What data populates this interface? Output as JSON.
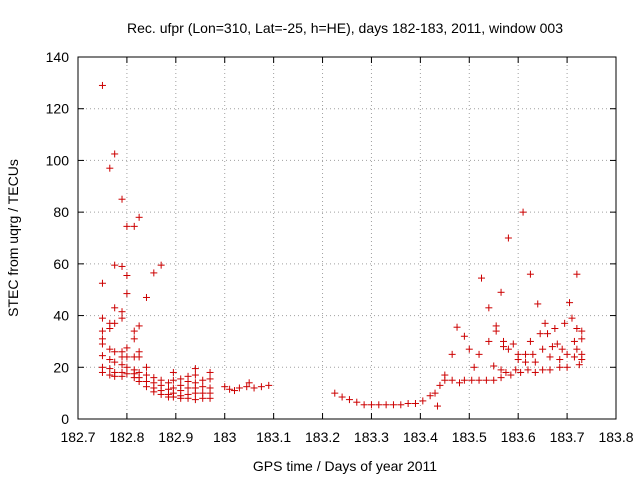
{
  "chart_data": {
    "type": "scatter",
    "title": "Rec. ufpr (Lon=310, Lat=-25, h=HE), days 182-183, 2011, window 003",
    "xlabel": "GPS time / Days of year 2011",
    "ylabel": "STEC from uqrg / TECUs",
    "xlim": [
      182.7,
      183.8
    ],
    "ylim": [
      0,
      140
    ],
    "xticks": [
      "182.7",
      "182.8",
      "182.9",
      "183",
      "183.1",
      "183.2",
      "183.3",
      "183.4",
      "183.5",
      "183.6",
      "183.7",
      "183.8"
    ],
    "yticks": [
      "0",
      "20",
      "40",
      "60",
      "80",
      "100",
      "120",
      "140"
    ],
    "grid": true,
    "marker": "+",
    "marker_color": "#cc0000",
    "series": [
      {
        "points": [
          [
            182.75,
            129
          ],
          [
            182.75,
            52.5
          ],
          [
            182.75,
            39
          ],
          [
            182.75,
            34
          ],
          [
            182.75,
            31
          ],
          [
            182.75,
            29
          ],
          [
            182.75,
            24.5
          ],
          [
            182.75,
            20
          ],
          [
            182.75,
            18
          ],
          [
            182.765,
            97
          ],
          [
            182.765,
            37
          ],
          [
            182.765,
            35
          ],
          [
            182.765,
            27
          ],
          [
            182.765,
            23
          ],
          [
            182.765,
            19.5
          ],
          [
            182.765,
            17
          ],
          [
            182.775,
            102.5
          ],
          [
            182.775,
            59.5
          ],
          [
            182.775,
            43
          ],
          [
            182.775,
            37
          ],
          [
            182.775,
            26
          ],
          [
            182.775,
            22
          ],
          [
            182.775,
            18
          ],
          [
            182.775,
            16.5
          ],
          [
            182.79,
            85
          ],
          [
            182.79,
            59
          ],
          [
            182.79,
            41.5
          ],
          [
            182.79,
            39
          ],
          [
            182.79,
            26
          ],
          [
            182.79,
            24
          ],
          [
            182.79,
            21
          ],
          [
            182.79,
            18
          ],
          [
            182.79,
            16.5
          ],
          [
            182.8,
            74.5
          ],
          [
            182.8,
            55.5
          ],
          [
            182.8,
            48.5
          ],
          [
            182.8,
            27.5
          ],
          [
            182.8,
            24
          ],
          [
            182.8,
            20
          ],
          [
            182.8,
            17.5
          ],
          [
            182.815,
            74.5
          ],
          [
            182.815,
            34
          ],
          [
            182.815,
            31
          ],
          [
            182.815,
            24
          ],
          [
            182.815,
            19
          ],
          [
            182.815,
            17.5
          ],
          [
            182.815,
            16
          ],
          [
            182.825,
            78
          ],
          [
            182.825,
            36
          ],
          [
            182.825,
            26
          ],
          [
            182.825,
            24
          ],
          [
            182.825,
            18
          ],
          [
            182.825,
            16
          ],
          [
            182.825,
            14.5
          ],
          [
            182.84,
            47
          ],
          [
            182.84,
            20
          ],
          [
            182.84,
            17
          ],
          [
            182.84,
            14.5
          ],
          [
            182.84,
            12.5
          ],
          [
            182.855,
            56.5
          ],
          [
            182.855,
            16
          ],
          [
            182.855,
            14
          ],
          [
            182.855,
            12
          ],
          [
            182.855,
            10.5
          ],
          [
            182.87,
            59.5
          ],
          [
            182.87,
            15
          ],
          [
            182.87,
            13
          ],
          [
            182.87,
            11
          ],
          [
            182.87,
            9.5
          ],
          [
            182.885,
            14
          ],
          [
            182.885,
            11.5
          ],
          [
            182.885,
            9.5
          ],
          [
            182.885,
            8.5
          ],
          [
            182.895,
            18
          ],
          [
            182.895,
            15
          ],
          [
            182.895,
            12
          ],
          [
            182.895,
            10
          ],
          [
            182.895,
            8.5
          ],
          [
            182.91,
            15.5
          ],
          [
            182.91,
            13
          ],
          [
            182.91,
            11
          ],
          [
            182.91,
            9
          ],
          [
            182.91,
            8
          ],
          [
            182.925,
            16.5
          ],
          [
            182.925,
            14.5
          ],
          [
            182.925,
            12
          ],
          [
            182.925,
            9.5
          ],
          [
            182.925,
            8
          ],
          [
            182.94,
            19.5
          ],
          [
            182.94,
            17
          ],
          [
            182.94,
            14
          ],
          [
            182.94,
            12
          ],
          [
            182.94,
            10
          ],
          [
            182.94,
            7.5
          ],
          [
            182.955,
            15
          ],
          [
            182.955,
            12.5
          ],
          [
            182.955,
            10
          ],
          [
            182.955,
            8
          ],
          [
            182.97,
            18
          ],
          [
            182.97,
            15.5
          ],
          [
            182.97,
            12
          ],
          [
            182.97,
            10
          ],
          [
            182.97,
            8
          ],
          [
            183.0,
            12.5
          ],
          [
            183.01,
            11.5
          ],
          [
            183.02,
            11
          ],
          [
            183.03,
            12
          ],
          [
            183.045,
            12.5
          ],
          [
            183.05,
            14
          ],
          [
            183.06,
            12
          ],
          [
            183.075,
            12.5
          ],
          [
            183.09,
            13
          ],
          [
            183.225,
            10
          ],
          [
            183.24,
            8.5
          ],
          [
            183.255,
            7.5
          ],
          [
            183.27,
            6.5
          ],
          [
            183.285,
            5.5
          ],
          [
            183.3,
            5.5
          ],
          [
            183.315,
            5.5
          ],
          [
            183.33,
            5.5
          ],
          [
            183.345,
            5.5
          ],
          [
            183.36,
            5.5
          ],
          [
            183.375,
            6
          ],
          [
            183.39,
            6
          ],
          [
            183.405,
            7
          ],
          [
            183.42,
            9
          ],
          [
            183.43,
            10
          ],
          [
            183.435,
            5
          ],
          [
            183.44,
            13
          ],
          [
            183.45,
            17
          ],
          [
            183.45,
            15
          ],
          [
            183.465,
            25
          ],
          [
            183.465,
            15
          ],
          [
            183.475,
            35.5
          ],
          [
            183.48,
            14
          ],
          [
            183.49,
            15
          ],
          [
            183.49,
            32
          ],
          [
            183.5,
            27
          ],
          [
            183.505,
            15
          ],
          [
            183.51,
            20
          ],
          [
            183.52,
            25
          ],
          [
            183.52,
            15
          ],
          [
            183.525,
            54.5
          ],
          [
            183.535,
            15
          ],
          [
            183.54,
            43
          ],
          [
            183.54,
            30
          ],
          [
            183.55,
            20.5
          ],
          [
            183.55,
            15
          ],
          [
            183.555,
            36
          ],
          [
            183.555,
            34
          ],
          [
            183.565,
            19
          ],
          [
            183.565,
            16
          ],
          [
            183.565,
            49
          ],
          [
            183.57,
            30
          ],
          [
            183.57,
            28
          ],
          [
            183.575,
            18
          ],
          [
            183.58,
            70
          ],
          [
            183.58,
            27
          ],
          [
            183.585,
            17
          ],
          [
            183.59,
            29
          ],
          [
            183.595,
            19
          ],
          [
            183.6,
            25
          ],
          [
            183.6,
            23
          ],
          [
            183.605,
            18
          ],
          [
            183.61,
            80
          ],
          [
            183.615,
            25
          ],
          [
            183.615,
            22
          ],
          [
            183.62,
            19
          ],
          [
            183.625,
            56
          ],
          [
            183.625,
            30
          ],
          [
            183.63,
            25
          ],
          [
            183.635,
            22
          ],
          [
            183.635,
            18
          ],
          [
            183.64,
            44.5
          ],
          [
            183.645,
            33
          ],
          [
            183.65,
            27
          ],
          [
            183.65,
            19
          ],
          [
            183.655,
            37
          ],
          [
            183.66,
            33
          ],
          [
            183.665,
            24
          ],
          [
            183.665,
            19
          ],
          [
            183.67,
            28
          ],
          [
            183.675,
            35
          ],
          [
            183.68,
            29
          ],
          [
            183.685,
            23
          ],
          [
            183.685,
            20
          ],
          [
            183.69,
            27
          ],
          [
            183.695,
            37
          ],
          [
            183.7,
            25
          ],
          [
            183.7,
            20
          ],
          [
            183.705,
            45
          ],
          [
            183.71,
            39
          ],
          [
            183.715,
            30
          ],
          [
            183.715,
            24
          ],
          [
            183.72,
            56
          ],
          [
            183.72,
            35
          ],
          [
            183.72,
            27
          ],
          [
            183.725,
            21
          ],
          [
            183.73,
            34
          ],
          [
            183.73,
            31
          ],
          [
            183.73,
            25
          ],
          [
            183.73,
            23
          ]
        ]
      }
    ]
  }
}
